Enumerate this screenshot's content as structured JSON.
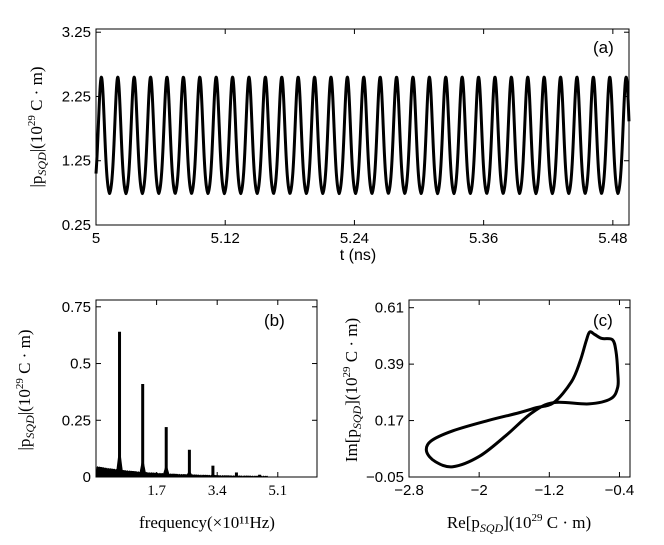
{
  "chart_data": [
    {
      "id": "a",
      "type": "line",
      "panel_label": "(a)",
      "xlabel": "t (ns)",
      "ylabel": {
        "pre": "|p",
        "sub": "SQD",
        "mid": "|(10",
        "sup": "29",
        "post": " C · m)"
      },
      "xlim": [
        5.0,
        5.495
      ],
      "ylim": [
        0.25,
        3.3
      ],
      "xticks": [
        5.0,
        5.12,
        5.24,
        5.36,
        5.48
      ],
      "xtick_labels": [
        "5",
        "5.12",
        "5.24",
        "5.36",
        "5.48"
      ],
      "yticks": [
        0.25,
        1.25,
        2.25,
        3.25
      ],
      "ytick_labels": [
        "0.25",
        "1.25",
        "2.25",
        "3.25"
      ],
      "series": [
        {
          "name": "|p_SQD|",
          "period_ns": 0.01523,
          "first_peak_ns": 5.005,
          "min": 0.7,
          "max": 2.55
        }
      ]
    },
    {
      "id": "b",
      "type": "bar",
      "panel_label": "(b)",
      "xlabel": "frequency(×10¹¹Hz)",
      "ylabel": {
        "pre": "|p",
        "sub": "SQD",
        "mid": "|(10",
        "sup": "29",
        "post": " C · m)"
      },
      "xlim": [
        0.0,
        6.2
      ],
      "ylim": [
        0.0,
        0.78
      ],
      "xticks": [
        1.7,
        3.4,
        5.1
      ],
      "xtick_labels": [
        "1.7",
        "3.4",
        "5.1"
      ],
      "yticks": [
        0.0,
        0.25,
        0.5,
        0.75
      ],
      "ytick_labels": [
        "0",
        "0.25",
        "0.5",
        "0.75"
      ],
      "peaks": [
        {
          "f": 0.66,
          "amp": 0.64,
          "side": 0.14
        },
        {
          "f": 1.31,
          "amp": 0.41,
          "side": 0.09
        },
        {
          "f": 1.97,
          "amp": 0.22,
          "side": 0.06
        },
        {
          "f": 2.62,
          "amp": 0.12,
          "side": 0.03
        },
        {
          "f": 3.28,
          "amp": 0.05,
          "side": 0.015
        },
        {
          "f": 3.94,
          "amp": 0.02,
          "side": 0.006
        },
        {
          "f": 4.59,
          "amp": 0.01,
          "side": 0.003
        }
      ]
    },
    {
      "id": "c",
      "type": "line",
      "panel_label": "(c)",
      "xlabel": {
        "pre": "Re[p",
        "sub": "SQD",
        "mid": "](10",
        "sup": "29",
        "post": " C · m)"
      },
      "ylabel": {
        "pre": "Im[p",
        "sub": "SQD",
        "mid": "](10",
        "sup": "29",
        "post": " C · m)"
      },
      "xlim": [
        -2.8,
        -0.28
      ],
      "ylim": [
        -0.05,
        0.64
      ],
      "xticks": [
        -2.8,
        -2.0,
        -1.2,
        -0.4
      ],
      "xtick_labels": [
        "−2.8",
        "−2",
        "−1.2",
        "−0.4"
      ],
      "yticks": [
        -0.05,
        0.17,
        0.39,
        0.61
      ],
      "ytick_labels": [
        "−0.05",
        "0.17",
        "0.39",
        "0.61"
      ],
      "series": [
        {
          "name": "trajectory",
          "points": [
            [
              -1.15,
              0.24
            ],
            [
              -0.95,
              0.32
            ],
            [
              -0.85,
              0.4
            ],
            [
              -0.78,
              0.48
            ],
            [
              -0.74,
              0.515
            ],
            [
              -0.68,
              0.505
            ],
            [
              -0.6,
              0.49
            ],
            [
              -0.48,
              0.485
            ],
            [
              -0.44,
              0.44
            ],
            [
              -0.42,
              0.36
            ],
            [
              -0.42,
              0.3
            ],
            [
              -0.5,
              0.255
            ],
            [
              -0.75,
              0.235
            ],
            [
              -1.15,
              0.24
            ],
            [
              -1.4,
              0.2
            ],
            [
              -1.7,
              0.11
            ],
            [
              -2.0,
              0.03
            ],
            [
              -2.3,
              -0.01
            ],
            [
              -2.5,
              0.01
            ],
            [
              -2.6,
              0.05
            ],
            [
              -2.55,
              0.09
            ],
            [
              -2.3,
              0.13
            ],
            [
              -1.9,
              0.17
            ],
            [
              -1.55,
              0.2
            ],
            [
              -1.35,
              0.22
            ],
            [
              -1.15,
              0.24
            ]
          ]
        }
      ]
    }
  ]
}
